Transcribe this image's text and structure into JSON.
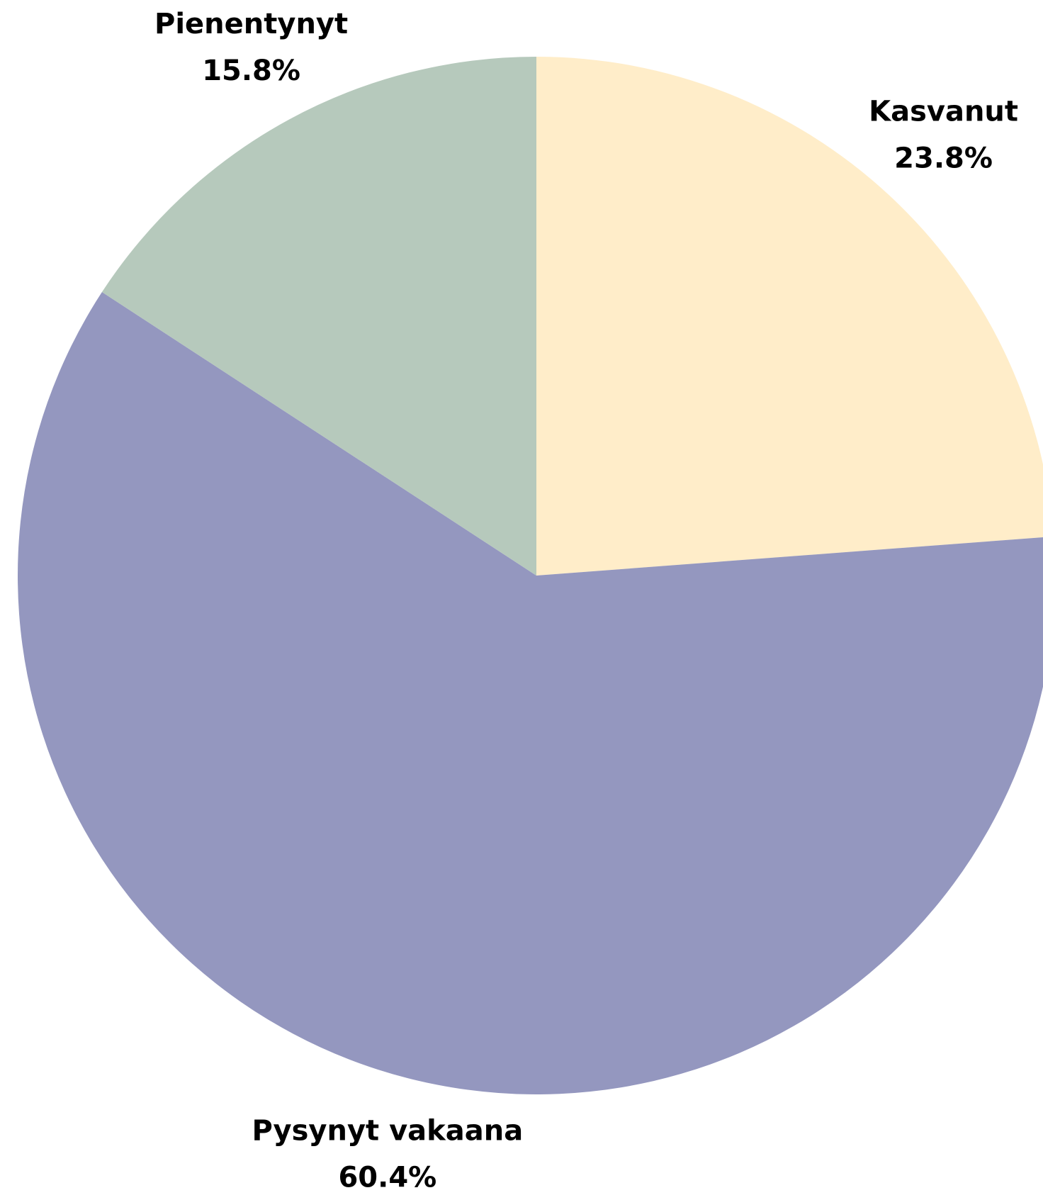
{
  "chart_data": {
    "type": "pie",
    "categories": [
      "Kasvanut",
      "Pysynyt vakaana",
      "Pienentynyt"
    ],
    "values": [
      23.8,
      60.4,
      15.8
    ],
    "value_labels": [
      "23.8%",
      "60.4%",
      "15.8%"
    ],
    "colors": [
      "#ffedc9",
      "#9497bf",
      "#b6c9bc"
    ]
  }
}
